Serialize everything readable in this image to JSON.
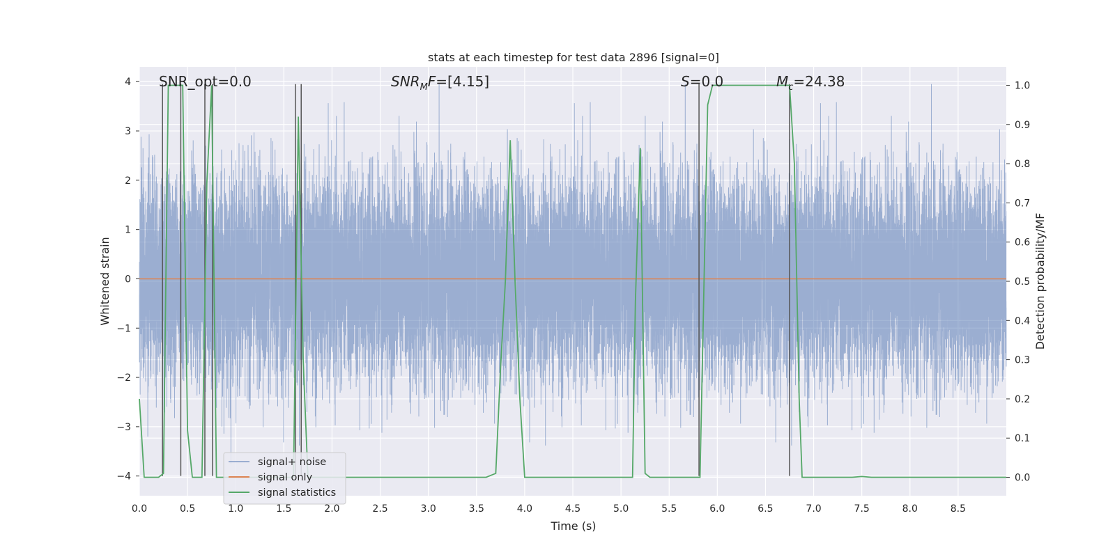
{
  "chart_data": {
    "type": "line",
    "title": "stats at each timestep for test data 2896 [signal=0]",
    "xlabel": "Time (s)",
    "ylabel": "Whitened strain",
    "ylabel_right": "Detection probability/MF",
    "xlim": [
      0.0,
      9.0
    ],
    "ylim": [
      -4.4,
      4.3
    ],
    "ylim_right": [
      -0.047,
      1.047
    ],
    "x_ticks": [
      "0.0",
      "0.5",
      "1.0",
      "1.5",
      "2.0",
      "2.5",
      "3.0",
      "3.5",
      "4.0",
      "4.5",
      "5.0",
      "5.5",
      "6.0",
      "6.5",
      "7.0",
      "7.5",
      "8.0",
      "8.5"
    ],
    "y_ticks": [
      "4",
      "3",
      "2",
      "1",
      "0",
      "−1",
      "−2",
      "−3",
      "−4"
    ],
    "y_ticks_right": [
      "1.0",
      "0.9",
      "0.8",
      "0.7",
      "0.6",
      "0.5",
      "0.4",
      "0.3",
      "0.2",
      "0.1",
      "0.0"
    ],
    "annotations": {
      "snr_opt": "SNR_opt=0.0",
      "snr_mf_base": "SNR",
      "snr_mf_sub": "M",
      "snr_mf_rest": "F",
      "snr_mf_value": "=[4.15]",
      "s_var": "S",
      "s_value": "=0.0",
      "mc_var": "M",
      "mc_sub": "c",
      "mc_value": "=24.38"
    },
    "legend": {
      "location": "lower-left",
      "entries": [
        "signal+ noise",
        "signal only",
        "signal statistics"
      ]
    },
    "series": [
      {
        "name": "signal+ noise",
        "axis": "left",
        "style": "noise",
        "sample_rate_hz": 2048,
        "band_sigma": 1.0,
        "peak_max": 3.95,
        "peak_min": -4.0
      },
      {
        "name": "signal only",
        "axis": "left",
        "x": [
          0.0,
          9.0
        ],
        "y": [
          0.0,
          0.0
        ]
      },
      {
        "name": "signal statistics",
        "axis": "right",
        "x": [
          0.0,
          0.05,
          0.1,
          0.15,
          0.2,
          0.25,
          0.3,
          0.35,
          0.4,
          0.45,
          0.5,
          0.55,
          0.6,
          0.65,
          0.7,
          0.75,
          0.8,
          0.85,
          0.9,
          1.0,
          1.5,
          1.6,
          1.65,
          1.7,
          1.75,
          1.8,
          2.0,
          3.0,
          3.5,
          3.6,
          3.7,
          3.75,
          3.8,
          3.85,
          3.9,
          3.95,
          4.0,
          4.5,
          5.0,
          5.12,
          5.15,
          5.2,
          5.25,
          5.3,
          5.4,
          5.5,
          5.8,
          5.82,
          5.9,
          5.95,
          6.0,
          6.5,
          6.7,
          6.75,
          6.8,
          6.85,
          6.88,
          6.9,
          7.0,
          7.4,
          7.5,
          7.6,
          8.0,
          8.5,
          9.0
        ],
        "y": [
          0.2,
          0.0,
          0.0,
          0.0,
          0.0,
          0.01,
          1.0,
          1.0,
          1.0,
          1.0,
          0.12,
          0.0,
          0.0,
          0.0,
          0.75,
          1.0,
          0.0,
          0.0,
          0.0,
          0.0,
          0.0,
          0.0,
          0.92,
          0.3,
          0.0,
          0.0,
          0.0,
          0.0,
          0.0,
          0.0,
          0.01,
          0.28,
          0.5,
          0.86,
          0.5,
          0.2,
          0.0,
          0.0,
          0.0,
          0.0,
          0.45,
          0.84,
          0.01,
          0.0,
          0.0,
          0.0,
          0.0,
          0.0,
          0.95,
          1.0,
          1.0,
          1.0,
          1.0,
          1.0,
          0.8,
          0.2,
          0.0,
          0.0,
          0.0,
          0.0,
          0.002,
          0.0,
          0.0,
          0.0,
          0.0
        ]
      }
    ],
    "detection_markers": {
      "color": "#555555",
      "x": [
        0.24,
        0.43,
        0.68,
        0.76,
        1.62,
        1.68,
        5.81,
        6.75
      ],
      "y_bottom": -4.0,
      "y_top": 3.95
    },
    "colors": {
      "background": "#EAEAF2",
      "grid": "#FFFFFF",
      "noise": "#4C72B0",
      "signal_only": "#DD8452",
      "statistics": "#55A868"
    }
  }
}
